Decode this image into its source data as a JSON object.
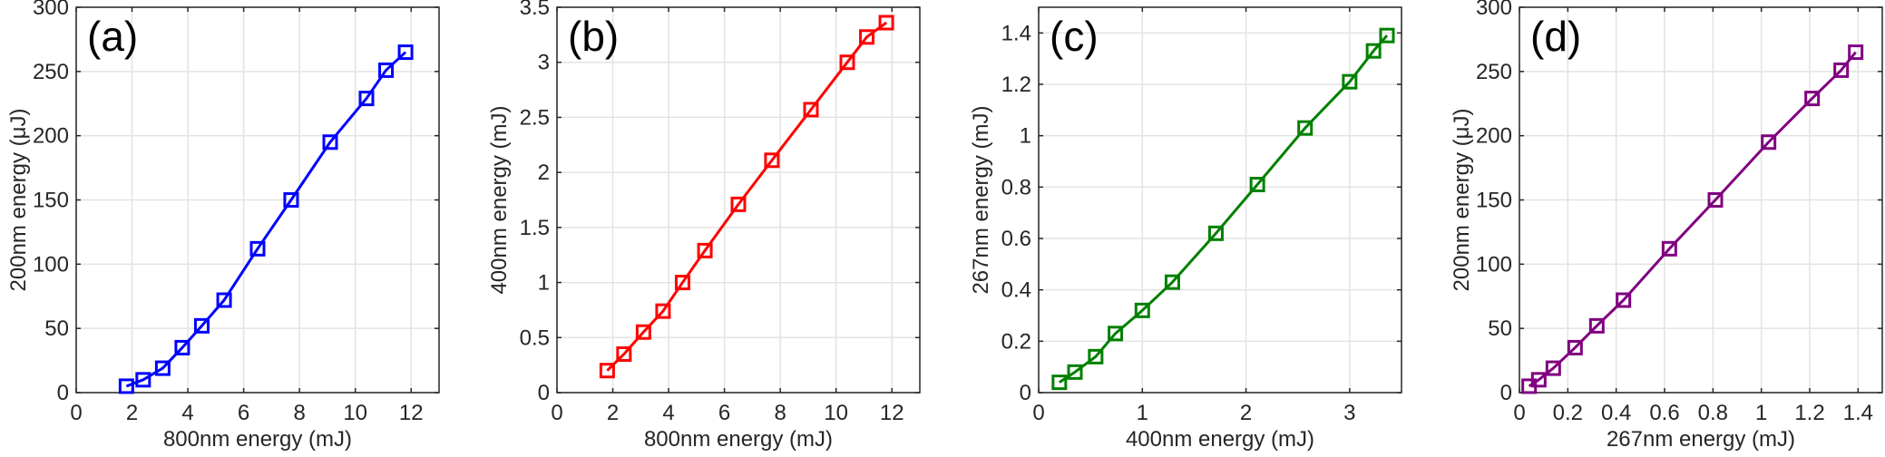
{
  "chart_data": [
    {
      "type": "line",
      "panel_label": "(a)",
      "xlabel": "800nm energy (mJ)",
      "ylabel": "200nm energy (μJ)",
      "xlim": [
        0,
        13
      ],
      "ylim": [
        0,
        300
      ],
      "xticks": [
        0,
        2,
        4,
        6,
        8,
        10,
        12
      ],
      "yticks": [
        0,
        50,
        100,
        150,
        200,
        250,
        300
      ],
      "grid": true,
      "color": "#0000ff",
      "marker": "square",
      "x": [
        1.8,
        2.4,
        3.1,
        3.8,
        4.5,
        5.3,
        6.5,
        7.7,
        9.1,
        10.4,
        11.1,
        11.8
      ],
      "y": [
        5,
        10,
        19,
        35,
        52,
        72,
        112,
        150,
        195,
        229,
        251,
        265
      ]
    },
    {
      "type": "line",
      "panel_label": "(b)",
      "xlabel": "800nm energy (mJ)",
      "ylabel": "400nm energy (mJ)",
      "xlim": [
        0,
        13
      ],
      "ylim": [
        0,
        3.5
      ],
      "xticks": [
        0,
        2,
        4,
        6,
        8,
        10,
        12
      ],
      "yticks": [
        0,
        0.5,
        1,
        1.5,
        2,
        2.5,
        3,
        3.5
      ],
      "grid": true,
      "color": "#ff0000",
      "marker": "square",
      "x": [
        1.8,
        2.4,
        3.1,
        3.8,
        4.5,
        5.3,
        6.5,
        7.7,
        9.1,
        10.4,
        11.1,
        11.8
      ],
      "y": [
        0.2,
        0.35,
        0.55,
        0.74,
        1.0,
        1.29,
        1.71,
        2.11,
        2.57,
        3.0,
        3.23,
        3.36
      ]
    },
    {
      "type": "line",
      "panel_label": "(c)",
      "xlabel": "400nm energy (mJ)",
      "ylabel": "267nm energy (mJ)",
      "xlim": [
        0,
        3.5
      ],
      "ylim": [
        0,
        1.5
      ],
      "xticks": [
        0,
        1,
        2,
        3
      ],
      "yticks": [
        0,
        0.2,
        0.4,
        0.6,
        0.8,
        1,
        1.2,
        1.4
      ],
      "grid": true,
      "color": "#008000",
      "marker": "square",
      "x": [
        0.2,
        0.35,
        0.55,
        0.74,
        1.0,
        1.29,
        1.71,
        2.11,
        2.57,
        3.0,
        3.23,
        3.36
      ],
      "y": [
        0.04,
        0.08,
        0.14,
        0.23,
        0.32,
        0.43,
        0.62,
        0.81,
        1.03,
        1.21,
        1.33,
        1.39
      ]
    },
    {
      "type": "line",
      "panel_label": "(d)",
      "xlabel": "267nm energy (mJ)",
      "ylabel": "200nm energy (μJ)",
      "xlim": [
        0,
        1.5
      ],
      "ylim": [
        0,
        300
      ],
      "xticks": [
        0,
        0.2,
        0.4,
        0.6,
        0.8,
        1,
        1.2,
        1.4
      ],
      "yticks": [
        0,
        50,
        100,
        150,
        200,
        250,
        300
      ],
      "grid": true,
      "color": "#800080",
      "marker": "square",
      "x": [
        0.04,
        0.08,
        0.14,
        0.23,
        0.32,
        0.43,
        0.62,
        0.81,
        1.03,
        1.21,
        1.33,
        1.39
      ],
      "y": [
        5,
        10,
        19,
        35,
        52,
        72,
        112,
        150,
        195,
        229,
        251,
        265
      ]
    }
  ]
}
